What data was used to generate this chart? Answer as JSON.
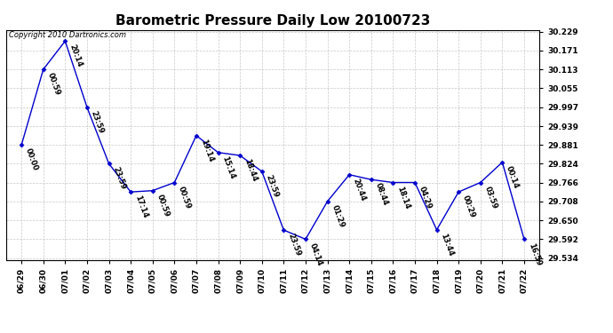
{
  "title": "Barometric Pressure Daily Low 20100723",
  "copyright": "Copyright 2010 Dartronics.com",
  "line_color": "#0000CC",
  "marker_color": "#0000CC",
  "background_color": "#ffffff",
  "grid_color": "#bbbbbb",
  "x_labels": [
    "06/29",
    "06/30",
    "07/01",
    "07/02",
    "07/03",
    "07/04",
    "07/05",
    "07/06",
    "07/07",
    "07/08",
    "07/09",
    "07/10",
    "07/11",
    "07/12",
    "07/13",
    "07/14",
    "07/15",
    "07/16",
    "07/17",
    "07/18",
    "07/19",
    "07/20",
    "07/21",
    "07/22"
  ],
  "y_values": [
    29.881,
    30.113,
    30.2,
    29.997,
    29.824,
    29.737,
    29.741,
    29.766,
    29.91,
    29.858,
    29.849,
    29.8,
    29.62,
    29.592,
    29.708,
    29.79,
    29.775,
    29.766,
    29.766,
    29.621,
    29.737,
    29.766,
    29.828,
    29.592
  ],
  "annotations": [
    "00:00",
    "00:59",
    "20:14",
    "23:59",
    "23:59",
    "17:14",
    "00:59",
    "00:59",
    "19:14",
    "15:14",
    "18:44",
    "23:59",
    "23:59",
    "04:14",
    "01:29",
    "20:44",
    "08:44",
    "18:14",
    "04:29",
    "13:44",
    "00:29",
    "03:59",
    "00:14",
    "16:59"
  ],
  "yticks": [
    29.534,
    29.592,
    29.65,
    29.708,
    29.766,
    29.824,
    29.881,
    29.939,
    29.997,
    30.055,
    30.113,
    30.171,
    30.229
  ],
  "title_fontsize": 11,
  "annotation_fontsize": 6,
  "copyright_fontsize": 6,
  "tick_fontsize": 6.5
}
